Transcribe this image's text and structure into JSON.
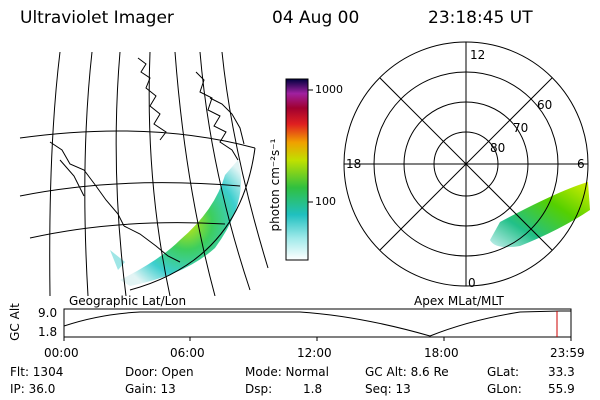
{
  "header": {
    "title": "Ultraviolet Imager",
    "date": "04 Aug 00",
    "time": "23:18:45 UT"
  },
  "colorbar": {
    "label": "photon cm⁻²s⁻¹",
    "ticks": [
      "1000",
      "100"
    ]
  },
  "left_panel": {
    "caption": "Geographic Lat/Lon"
  },
  "right_panel": {
    "caption": "Apex MLat/MLT",
    "mlt_labels": [
      "12",
      "18",
      "6",
      "0"
    ],
    "mlat_labels": [
      "60",
      "70",
      "80"
    ]
  },
  "timeline": {
    "ylabel": "GC Alt",
    "yticks": [
      "9.0",
      "1.8"
    ],
    "xticks": [
      "00:00",
      "06:00",
      "12:00",
      "18:00",
      "23:59"
    ]
  },
  "info": {
    "flt": "Flt: 1304",
    "ip": "IP: 36.0",
    "door": "Door: Open",
    "gain": "Gain: 13",
    "mode": "Mode: Normal",
    "dsp": "Dsp:",
    "dsp_val": "1.8",
    "gcalt": "GC Alt: 8.6 Re",
    "seq": "Seq: 13",
    "glat": "GLat:",
    "glat_val": "33.3",
    "glon": "GLon:",
    "glon_val": "55.9"
  },
  "colors": {
    "cursor": "#cc0000"
  }
}
